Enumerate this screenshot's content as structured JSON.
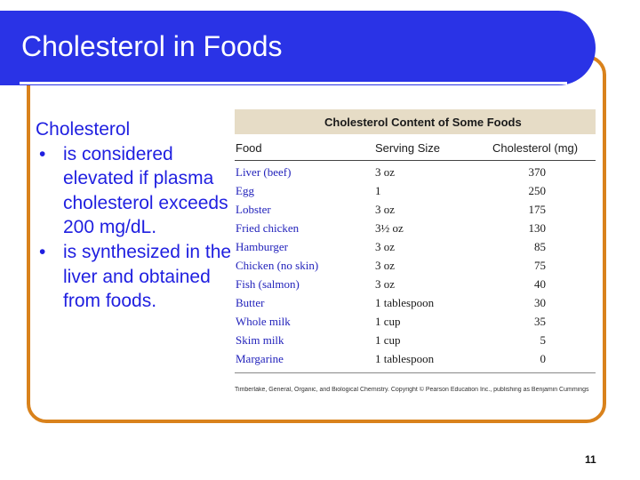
{
  "slide": {
    "title": "Cholesterol in Foods",
    "page_number": "11"
  },
  "body": {
    "heading": "Cholesterol",
    "bullet_marker": "•",
    "bullets": [
      {
        "text": "is considered elevated if plasma cholesterol exceeds 200 mg/dL."
      },
      {
        "text": "is synthesized in the liver and obtained from foods."
      }
    ]
  },
  "table": {
    "title": "Cholesterol Content of Some Foods",
    "headers": {
      "food": "Food",
      "serving": "Serving Size",
      "cholesterol": "Cholesterol (mg)"
    },
    "rows": [
      {
        "food": "Liver (beef)",
        "serving": "3 oz",
        "cholesterol": "370"
      },
      {
        "food": "Egg",
        "serving": "1",
        "cholesterol": "250"
      },
      {
        "food": "Lobster",
        "serving": "3 oz",
        "cholesterol": "175"
      },
      {
        "food": "Fried chicken",
        "serving": "3½ oz",
        "cholesterol": "130"
      },
      {
        "food": "Hamburger",
        "serving": "3 oz",
        "cholesterol": "85"
      },
      {
        "food": "Chicken (no skin)",
        "serving": "3 oz",
        "cholesterol": "75"
      },
      {
        "food": "Fish (salmon)",
        "serving": "3 oz",
        "cholesterol": "40"
      },
      {
        "food": "Butter",
        "serving": "1 tablespoon",
        "cholesterol": "30"
      },
      {
        "food": "Whole milk",
        "serving": "1 cup",
        "cholesterol": "35"
      },
      {
        "food": "Skim milk",
        "serving": "1 cup",
        "cholesterol": "5"
      },
      {
        "food": "Margarine",
        "serving": "1 tablespoon",
        "cholesterol": "0"
      }
    ],
    "credit": "Timberlake, General, Organic, and Biological Chemistry. Copyright © Pearson Education Inc., publishing as Benjamin Cummings"
  },
  "colors": {
    "title_banner": "#2a33e6",
    "frame": "#d9821c",
    "body_text": "#1f1fe0",
    "table_title_bar": "#e6dcc6",
    "food_text": "#2222bb"
  }
}
